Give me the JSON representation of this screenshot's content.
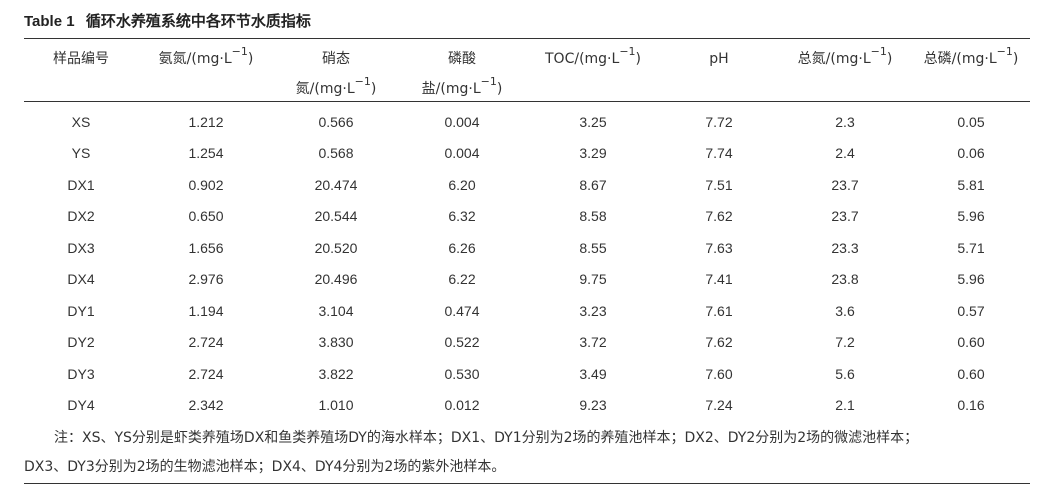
{
  "caption": {
    "table_number": "Table 1",
    "title": "循环水养殖系统中各环节水质指标"
  },
  "table": {
    "headers": [
      {
        "main": "样品编号",
        "second": "",
        "sup": ""
      },
      {
        "main": "氨氮/(mg·L",
        "second": "",
        "sup": "−1",
        "close": ")"
      },
      {
        "main": "硝态",
        "second": "氮/(mg·L",
        "sup": "−1",
        "close": ")"
      },
      {
        "main": "磷酸",
        "second": "盐/(mg·L",
        "sup": "−1",
        "close": ")"
      },
      {
        "main": "TOC/(mg·L",
        "second": "",
        "sup": "−1",
        "close": ")"
      },
      {
        "main": "pH",
        "second": "",
        "sup": ""
      },
      {
        "main": "总氮/(mg·L",
        "second": "",
        "sup": "−1",
        "close": ")"
      },
      {
        "main": "总磷/(mg·L",
        "second": "",
        "sup": "−1",
        "close": ")"
      }
    ],
    "rows": [
      [
        "XS",
        "1.212",
        "0.566",
        "0.004",
        "3.25",
        "7.72",
        "2.3",
        "0.05"
      ],
      [
        "YS",
        "1.254",
        "0.568",
        "0.004",
        "3.29",
        "7.74",
        "2.4",
        "0.06"
      ],
      [
        "DX1",
        "0.902",
        "20.474",
        "6.20",
        "8.67",
        "7.51",
        "23.7",
        "5.81"
      ],
      [
        "DX2",
        "0.650",
        "20.544",
        "6.32",
        "8.58",
        "7.62",
        "23.7",
        "5.96"
      ],
      [
        "DX3",
        "1.656",
        "20.520",
        "6.26",
        "8.55",
        "7.63",
        "23.3",
        "5.71"
      ],
      [
        "DX4",
        "2.976",
        "20.496",
        "6.22",
        "9.75",
        "7.41",
        "23.8",
        "5.96"
      ],
      [
        "DY1",
        "1.194",
        "3.104",
        "0.474",
        "3.23",
        "7.61",
        "3.6",
        "0.57"
      ],
      [
        "DY2",
        "2.724",
        "3.830",
        "0.522",
        "3.72",
        "7.62",
        "7.2",
        "0.60"
      ],
      [
        "DY3",
        "2.724",
        "3.822",
        "0.530",
        "3.49",
        "7.60",
        "5.6",
        "0.60"
      ],
      [
        "DY4",
        "2.342",
        "1.010",
        "0.012",
        "9.23",
        "7.24",
        "2.1",
        "0.16"
      ]
    ]
  },
  "note": {
    "line1": "注：XS、YS分别是虾类养殖场DX和鱼类养殖场DY的海水样本；DX1、DY1分别为2场的养殖池样本；DX2、DY2分别为2场的微滤池样本；",
    "line2": "DX3、DY3分别为2场的生物滤池样本；DX4、DY4分别为2场的紫外池样本。"
  }
}
